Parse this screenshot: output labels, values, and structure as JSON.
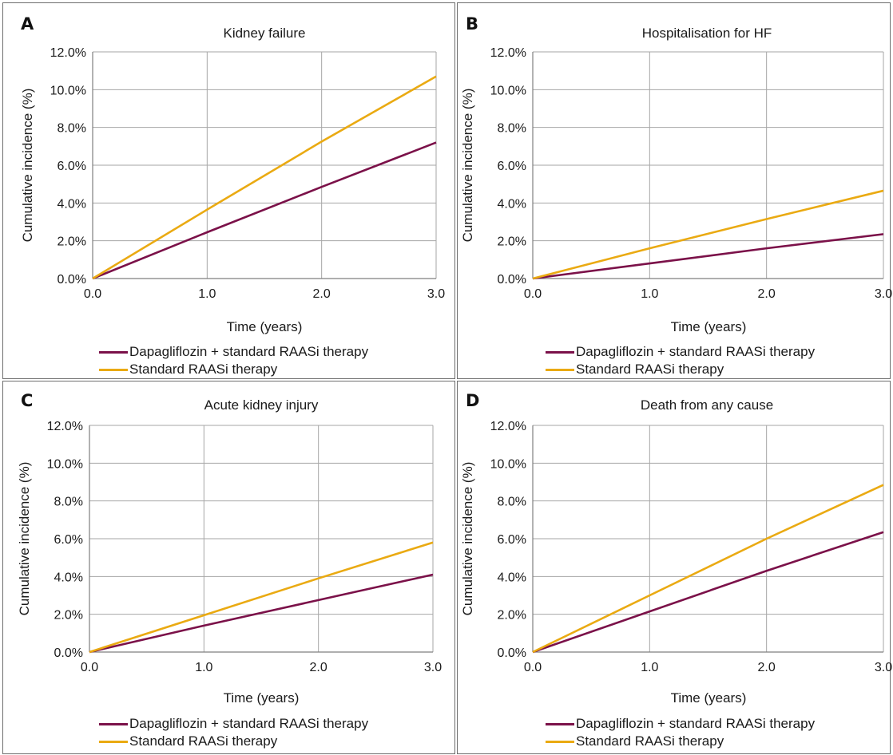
{
  "chart_data": [
    {
      "panel": "A",
      "type": "line",
      "title": "Kidney failure",
      "xlabel": "Time (years)",
      "ylabel": "Cumulative incidence (%)",
      "xlim": [
        0,
        3
      ],
      "ylim": [
        0,
        12
      ],
      "x_ticks": [
        "0.0",
        "1.0",
        "2.0",
        "3.0"
      ],
      "y_ticks": [
        "0.0%",
        "2.0%",
        "4.0%",
        "6.0%",
        "8.0%",
        "10.0%",
        "12.0%"
      ],
      "grid": true,
      "legend_position": "bottom",
      "series": [
        {
          "name": "Dapagliflozin + standard RAASi therapy",
          "color": "#7b1149",
          "x": [
            0,
            1,
            2,
            3
          ],
          "y": [
            0,
            2.45,
            4.85,
            7.2
          ]
        },
        {
          "name": "Standard RAASi therapy",
          "color": "#eaaa12",
          "x": [
            0,
            1,
            2,
            3
          ],
          "y": [
            0,
            3.65,
            7.25,
            10.7
          ]
        }
      ]
    },
    {
      "panel": "B",
      "type": "line",
      "title": "Hospitalisation for HF",
      "xlabel": "Time (years)",
      "ylabel": "Cumulative incidence (%)",
      "xlim": [
        0,
        3
      ],
      "ylim": [
        0,
        12
      ],
      "x_ticks": [
        "0.0",
        "1.0",
        "2.0",
        "3.0"
      ],
      "y_ticks": [
        "0.0%",
        "2.0%",
        "4.0%",
        "6.0%",
        "8.0%",
        "10.0%",
        "12.0%"
      ],
      "grid": true,
      "legend_position": "bottom",
      "series": [
        {
          "name": "Dapagliflozin + standard RAASi therapy",
          "color": "#7b1149",
          "x": [
            0,
            1,
            2,
            3
          ],
          "y": [
            0,
            0.8,
            1.6,
            2.35
          ]
        },
        {
          "name": "Standard RAASi therapy",
          "color": "#eaaa12",
          "x": [
            0,
            1,
            2,
            3
          ],
          "y": [
            0,
            1.6,
            3.15,
            4.65
          ]
        }
      ]
    },
    {
      "panel": "C",
      "type": "line",
      "title": "Acute kidney injury",
      "xlabel": "Time (years)",
      "ylabel": "Cumulative incidence (%)",
      "xlim": [
        0,
        3
      ],
      "ylim": [
        0,
        12
      ],
      "x_ticks": [
        "0.0",
        "1.0",
        "2.0",
        "3.0"
      ],
      "y_ticks": [
        "0.0%",
        "2.0%",
        "4.0%",
        "6.0%",
        "8.0%",
        "10.0%",
        "12.0%"
      ],
      "grid": true,
      "legend_position": "bottom",
      "series": [
        {
          "name": "Dapagliflozin + standard RAASi therapy",
          "color": "#7b1149",
          "x": [
            0,
            1,
            2,
            3
          ],
          "y": [
            0,
            1.4,
            2.75,
            4.1
          ]
        },
        {
          "name": "Standard RAASi therapy",
          "color": "#eaaa12",
          "x": [
            0,
            1,
            2,
            3
          ],
          "y": [
            0,
            1.95,
            3.9,
            5.8
          ]
        }
      ]
    },
    {
      "panel": "D",
      "type": "line",
      "title": "Death from any cause",
      "xlabel": "Time (years)",
      "ylabel": "Cumulative incidence (%)",
      "xlim": [
        0,
        3
      ],
      "ylim": [
        0,
        12
      ],
      "x_ticks": [
        "0.0",
        "1.0",
        "2.0",
        "3.0"
      ],
      "y_ticks": [
        "0.0%",
        "2.0%",
        "4.0%",
        "6.0%",
        "8.0%",
        "10.0%",
        "12.0%"
      ],
      "grid": true,
      "legend_position": "bottom",
      "series": [
        {
          "name": "Dapagliflozin + standard RAASi therapy",
          "color": "#7b1149",
          "x": [
            0,
            1,
            2,
            3
          ],
          "y": [
            0,
            2.15,
            4.3,
            6.35
          ]
        },
        {
          "name": "Standard RAASi therapy",
          "color": "#eaaa12",
          "x": [
            0,
            1,
            2,
            3
          ],
          "y": [
            0,
            3.0,
            6.0,
            8.85
          ]
        }
      ]
    }
  ]
}
